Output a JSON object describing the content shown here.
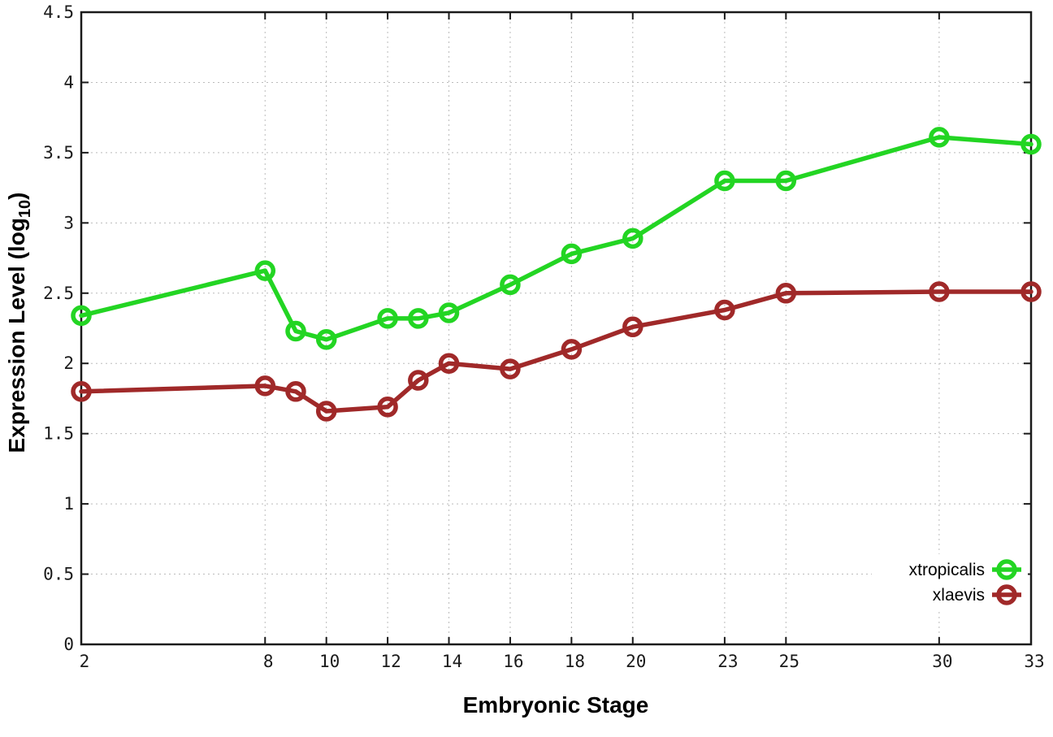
{
  "chart_data": {
    "type": "line",
    "title": "",
    "xlabel": "Embryonic Stage",
    "ylabel": "Expression Level (log10)",
    "ylabel_parts": {
      "prefix": "Expression Level (log",
      "sub": "10",
      "suffix": ")"
    },
    "xlim": [
      2,
      33
    ],
    "ylim": [
      0,
      4.5
    ],
    "x_ticks": [
      2,
      8,
      10,
      12,
      14,
      16,
      18,
      20,
      23,
      25,
      30,
      33
    ],
    "x_tick_labels": [
      "2",
      "8",
      "10",
      "12",
      "14",
      "16",
      "18",
      "20",
      "23",
      "25",
      "30",
      "33"
    ],
    "y_ticks": [
      0,
      0.5,
      1,
      1.5,
      2,
      2.5,
      3,
      3.5,
      4,
      4.5
    ],
    "y_tick_labels": [
      "0",
      "0.5",
      "1",
      "1.5",
      "2",
      "2.5",
      "3",
      "3.5",
      "4",
      "4.5"
    ],
    "grid": true,
    "grid_color": "#bbbbbb",
    "border_color": "#1a1a1a",
    "legend_position": "bottom-right",
    "x": [
      2,
      8,
      9,
      10,
      12,
      13,
      14,
      16,
      18,
      20,
      23,
      25,
      30,
      33
    ],
    "series": [
      {
        "name": "xtropicalis",
        "color": "#23d523",
        "values": [
          2.34,
          2.66,
          2.23,
          2.17,
          2.32,
          2.32,
          2.36,
          2.56,
          2.78,
          2.89,
          3.3,
          3.3,
          3.61,
          3.56
        ]
      },
      {
        "name": "xlaevis",
        "color": "#a02929",
        "values": [
          1.8,
          1.84,
          1.8,
          1.66,
          1.69,
          1.88,
          2.0,
          1.96,
          2.1,
          2.26,
          2.38,
          2.5,
          2.51,
          2.51
        ]
      }
    ]
  }
}
